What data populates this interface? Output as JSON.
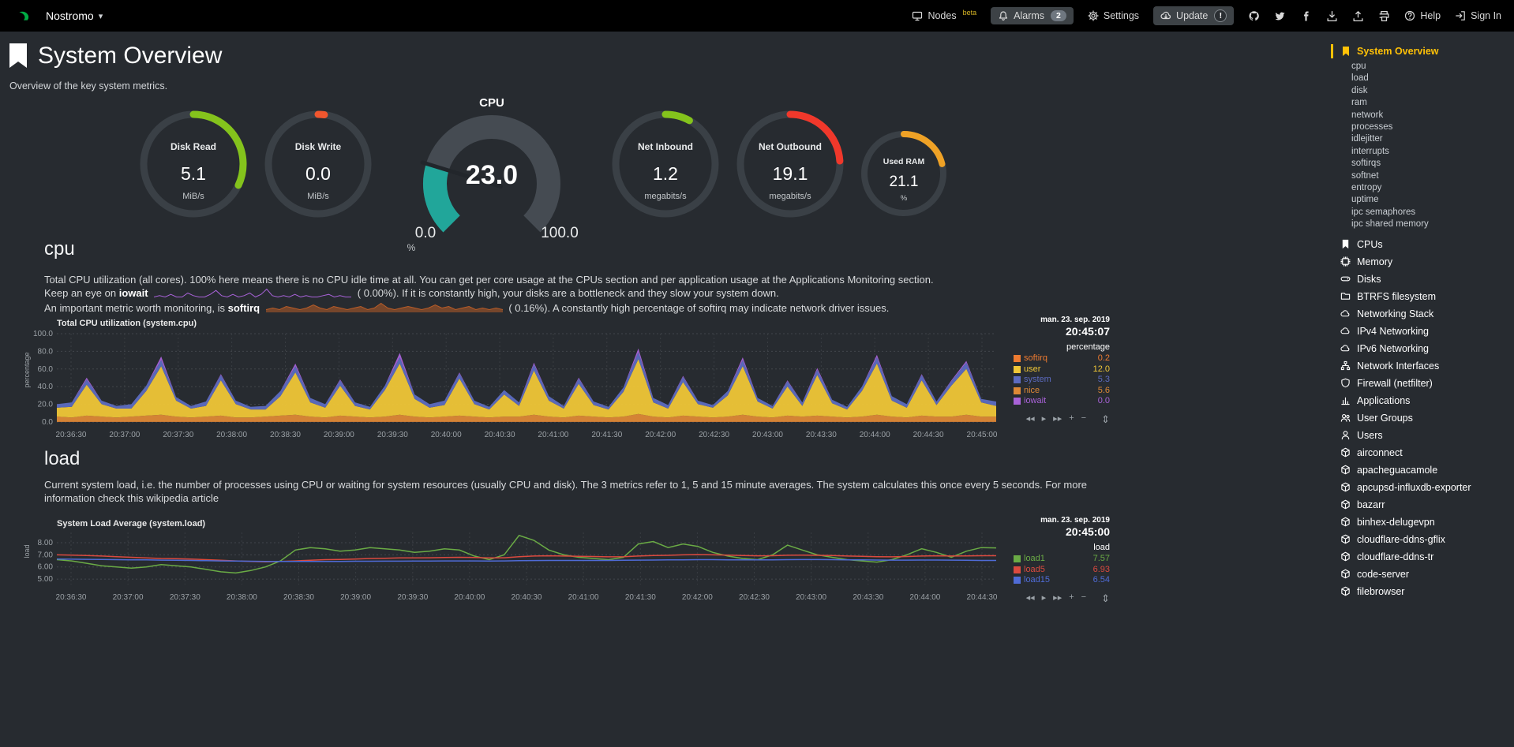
{
  "topbar": {
    "brand": "Nostromo",
    "nodes_label": "Nodes",
    "nodes_badge": "beta",
    "alarms_label": "Alarms",
    "alarms_count": "2",
    "settings_label": "Settings",
    "update_label": "Update",
    "update_badge": "!",
    "help_label": "Help",
    "signin_label": "Sign In"
  },
  "header": {
    "title": "System Overview",
    "subtitle": "Overview of the key system metrics."
  },
  "gauges": [
    {
      "id": "disk-read",
      "type": "pie",
      "label": "Disk Read",
      "value": "5.1",
      "units": "MiB/s",
      "color": "#84C31C",
      "fraction": 0.32
    },
    {
      "id": "disk-write",
      "type": "pie",
      "label": "Disk Write",
      "value": "0.0",
      "units": "MiB/s",
      "color": "#F0562E",
      "fraction": 0.02
    },
    {
      "id": "cpu",
      "type": "gauge",
      "label": "CPU",
      "value": "23.0",
      "min": "0.0",
      "max": "100.0",
      "units": "%",
      "color": "#21A69A",
      "fraction": 0.23
    },
    {
      "id": "net-inbound",
      "type": "pie",
      "label": "Net Inbound",
      "value": "1.2",
      "units": "megabits/s",
      "color": "#84C31C",
      "fraction": 0.08
    },
    {
      "id": "net-outbound",
      "type": "pie",
      "label": "Net Outbound",
      "value": "19.1",
      "units": "megabits/s",
      "color": "#F0382B",
      "fraction": 0.24
    },
    {
      "id": "used-ram",
      "type": "pie",
      "label": "Used RAM",
      "value": "21.1",
      "units": "%",
      "color": "#EFA226",
      "fraction": 0.211,
      "small": true
    }
  ],
  "cpu_section": {
    "heading": "cpu",
    "p1": "Total CPU utilization (all cores). 100% here means there is no CPU idle time at all. You can get per core usage at the CPUs section and per application usage at the Applications Monitoring section.",
    "p2_pre": "Keep an eye on ",
    "p2_bold": "iowait",
    "p2_post": "( 0.00%). If it is constantly high, your disks are a bottleneck and they slow your system down.",
    "p3_pre": "An important metric worth monitoring, is ",
    "p3_bold": "softirq",
    "p3_post": "( 0.16%). A constantly high percentage of softirq may indicate network driver issues.",
    "iowait_spark": [
      0,
      1,
      0,
      2,
      0,
      0,
      3,
      1,
      0,
      0,
      2,
      5,
      1,
      0,
      2,
      0,
      1,
      3,
      0,
      2,
      6,
      1,
      0,
      1,
      0,
      2,
      0,
      1,
      0,
      0,
      1,
      2,
      0,
      1,
      0,
      0
    ],
    "softirq_spark": [
      1,
      2,
      1,
      3,
      2,
      1,
      2,
      4,
      2,
      1,
      3,
      2,
      1,
      2,
      3,
      1,
      2,
      5,
      2,
      1,
      2,
      3,
      2,
      1,
      2,
      4,
      2,
      3,
      1,
      2,
      3,
      1,
      2,
      1,
      2,
      1
    ],
    "spark_colors": {
      "iowait": "#A862D8",
      "softirq": "#B85C28"
    }
  },
  "load_section": {
    "heading": "load",
    "p1": "Current system load, i.e. the number of processes using CPU or waiting for system resources (usually CPU and disk). The 3 metrics refer to 1, 5 and 15 minute averages. The system calculates this once every 5 seconds. For more information check this",
    "link_label": "wikipedia article"
  },
  "toolbox": {
    "labels": [
      "◂◂",
      "▸",
      "▸▸",
      "+",
      "−"
    ],
    "names": [
      "pan-backward",
      "play",
      "pan-forward",
      "zoom-in",
      "zoom-out"
    ],
    "resize": "⇕"
  },
  "chart_data": [
    {
      "type": "area",
      "stacked": true,
      "title": "Total CPU utilization (system.cpu)",
      "date": "man. 23. sep. 2019",
      "time": "20:45:07",
      "unit": "percentage",
      "ylabel": "percentage",
      "ylim": [
        0,
        100
      ],
      "yticks": [
        {
          "v": 0,
          "label": "0.0"
        },
        {
          "v": 20,
          "label": "20.0"
        },
        {
          "v": 40,
          "label": "40.0"
        },
        {
          "v": 60,
          "label": "60.0"
        },
        {
          "v": 80,
          "label": "80.0"
        },
        {
          "v": 100,
          "label": "100.0"
        }
      ],
      "xticks": [
        "20:36:30",
        "20:37:00",
        "20:37:30",
        "20:38:00",
        "20:38:30",
        "20:39:00",
        "20:39:30",
        "20:40:00",
        "20:40:30",
        "20:41:00",
        "20:41:30",
        "20:42:00",
        "20:42:30",
        "20:43:00",
        "20:43:30",
        "20:44:00",
        "20:44:30",
        "20:45:00"
      ],
      "stack_order": [
        "softirq",
        "nice",
        "user",
        "system",
        "iowait"
      ],
      "series": [
        {
          "name": "softirq",
          "color": "#ED7B31",
          "value_label": "0.2",
          "values": [
            0.2,
            0.2,
            0.2,
            0.2,
            0.2,
            0.2,
            0.2,
            0.2,
            0.2,
            0.2,
            0.2,
            0.2,
            0.2,
            0.2,
            0.2,
            0.2,
            0.2,
            0.2,
            0.2,
            0.2,
            0.2,
            0.2,
            0.2,
            0.2,
            0.2,
            0.2,
            0.2,
            0.2,
            0.2,
            0.2,
            0.2,
            0.2,
            0.2,
            0.2,
            0.2,
            0.2,
            0.2,
            0.2,
            0.2,
            0.2,
            0.2,
            0.2,
            0.2,
            0.2,
            0.2,
            0.2,
            0.2,
            0.2,
            0.2,
            0.2,
            0.2,
            0.2,
            0.2,
            0.2,
            0.2,
            0.2,
            0.2,
            0.2,
            0.2,
            0.2,
            0.2,
            0.2,
            0.2,
            0.2
          ]
        },
        {
          "name": "user",
          "color": "#EFC637",
          "value_label": "12.0",
          "values": [
            10,
            12,
            35,
            14,
            10,
            9,
            28,
            55,
            18,
            10,
            12,
            40,
            15,
            9,
            8,
            22,
            48,
            16,
            11,
            34,
            12,
            9,
            30,
            58,
            20,
            11,
            13,
            42,
            14,
            9,
            25,
            12,
            50,
            18,
            10,
            36,
            13,
            9,
            28,
            62,
            16,
            10,
            38,
            14,
            11,
            24,
            55,
            17,
            10,
            33,
            12,
            46,
            15,
            9,
            29,
            58,
            18,
            11,
            40,
            13,
            35,
            52,
            16,
            12
          ]
        },
        {
          "name": "system",
          "color": "#5C6BC0",
          "value_label": "5.3",
          "values": [
            4,
            5,
            6,
            4,
            3,
            5,
            6,
            7,
            4,
            3,
            5,
            6,
            4,
            3,
            4,
            6,
            7,
            5,
            4,
            6,
            4,
            3,
            5,
            7,
            5,
            4,
            5,
            6,
            4,
            3,
            5,
            4,
            7,
            5,
            3,
            6,
            4,
            3,
            5,
            8,
            5,
            4,
            6,
            4,
            3,
            5,
            7,
            4,
            3,
            6,
            4,
            6,
            4,
            3,
            5,
            7,
            5,
            4,
            6,
            4,
            5,
            7,
            4,
            5
          ]
        },
        {
          "name": "nice",
          "color": "#DD8836",
          "value_label": "5.6",
          "values": [
            6,
            5,
            7,
            6,
            5,
            6,
            7,
            8,
            6,
            5,
            6,
            7,
            5,
            5,
            6,
            7,
            8,
            6,
            5,
            7,
            6,
            5,
            6,
            8,
            6,
            5,
            6,
            7,
            6,
            5,
            6,
            6,
            8,
            6,
            5,
            7,
            6,
            5,
            6,
            9,
            6,
            5,
            7,
            6,
            5,
            6,
            8,
            6,
            5,
            7,
            6,
            7,
            6,
            5,
            6,
            8,
            6,
            5,
            7,
            6,
            6,
            8,
            6,
            6
          ]
        },
        {
          "name": "iowait",
          "color": "#A862D8",
          "value_label": "0.0",
          "values": [
            0,
            0,
            2,
            0,
            0,
            0,
            0,
            4,
            0,
            0,
            0,
            1,
            0,
            0,
            0,
            0,
            3,
            0,
            0,
            1,
            0,
            0,
            0,
            5,
            0,
            0,
            0,
            1,
            0,
            0,
            0,
            0,
            2,
            0,
            0,
            1,
            0,
            0,
            0,
            4,
            0,
            0,
            1,
            0,
            0,
            0,
            3,
            0,
            0,
            1,
            0,
            2,
            0,
            0,
            0,
            3,
            0,
            0,
            1,
            0,
            1,
            2,
            0,
            0
          ]
        }
      ]
    },
    {
      "type": "line",
      "stacked": false,
      "title": "System Load Average (system.load)",
      "date": "man. 23. sep. 2019",
      "time": "20:45:00",
      "unit": "load",
      "ylabel": "load",
      "ylim": [
        4.55,
        8.85
      ],
      "yticks": [
        {
          "v": 8,
          "label": "8.00"
        },
        {
          "v": 7,
          "label": "7.00"
        },
        {
          "v": 6,
          "label": "6.00"
        },
        {
          "v": 5,
          "label": "5.00"
        }
      ],
      "xticks": [
        "20:36:30",
        "20:37:00",
        "20:37:30",
        "20:38:00",
        "20:38:30",
        "20:39:00",
        "20:39:30",
        "20:40:00",
        "20:40:30",
        "20:41:00",
        "20:41:30",
        "20:42:00",
        "20:42:30",
        "20:43:00",
        "20:43:30",
        "20:44:00",
        "20:44:30"
      ],
      "series": [
        {
          "name": "load1",
          "color": "#6AAB45",
          "value_label": "7.57",
          "values": [
            6.6,
            6.5,
            6.3,
            6.1,
            6.0,
            5.9,
            6.0,
            6.2,
            6.1,
            6.0,
            5.8,
            5.6,
            5.5,
            5.7,
            6.0,
            6.5,
            7.4,
            7.6,
            7.5,
            7.3,
            7.4,
            7.6,
            7.5,
            7.4,
            7.2,
            7.3,
            7.5,
            7.4,
            6.9,
            6.6,
            7.0,
            8.6,
            8.2,
            7.4,
            7.0,
            6.8,
            6.7,
            6.6,
            6.8,
            7.9,
            8.1,
            7.6,
            7.9,
            7.7,
            7.2,
            6.9,
            6.7,
            6.6,
            7.0,
            7.8,
            7.4,
            7.0,
            6.8,
            6.6,
            6.5,
            6.4,
            6.6,
            7.0,
            7.5,
            7.2,
            6.8,
            7.3,
            7.6,
            7.57
          ]
        },
        {
          "name": "load5",
          "color": "#DB4A3F",
          "value_label": "6.93",
          "values": [
            7.0,
            6.98,
            6.95,
            6.9,
            6.85,
            6.8,
            6.75,
            6.7,
            6.68,
            6.65,
            6.6,
            6.55,
            6.5,
            6.45,
            6.42,
            6.45,
            6.5,
            6.55,
            6.6,
            6.62,
            6.65,
            6.7,
            6.72,
            6.75,
            6.75,
            6.76,
            6.78,
            6.8,
            6.78,
            6.75,
            6.76,
            6.85,
            6.9,
            6.92,
            6.9,
            6.88,
            6.86,
            6.84,
            6.85,
            6.9,
            6.95,
            6.96,
            7.0,
            7.02,
            7.0,
            6.98,
            6.95,
            6.92,
            6.93,
            6.97,
            6.98,
            6.96,
            6.94,
            6.9,
            6.88,
            6.85,
            6.84,
            6.86,
            6.9,
            6.92,
            6.9,
            6.91,
            6.93,
            6.93
          ]
        },
        {
          "name": "load15",
          "color": "#4F6BD6",
          "value_label": "6.54",
          "values": [
            6.65,
            6.64,
            6.63,
            6.62,
            6.6,
            6.59,
            6.58,
            6.56,
            6.55,
            6.54,
            6.52,
            6.5,
            6.49,
            6.47,
            6.46,
            6.45,
            6.45,
            6.45,
            6.46,
            6.46,
            6.47,
            6.47,
            6.48,
            6.48,
            6.49,
            6.49,
            6.5,
            6.5,
            6.5,
            6.49,
            6.5,
            6.52,
            6.53,
            6.54,
            6.54,
            6.54,
            6.54,
            6.54,
            6.55,
            6.56,
            6.57,
            6.58,
            6.59,
            6.6,
            6.6,
            6.59,
            6.59,
            6.58,
            6.59,
            6.6,
            6.61,
            6.61,
            6.6,
            6.59,
            6.58,
            6.57,
            6.56,
            6.56,
            6.57,
            6.57,
            6.56,
            6.55,
            6.54,
            6.54
          ]
        }
      ]
    }
  ],
  "sidebar": {
    "active_label": "System Overview",
    "active_icon": "bookmark-icon",
    "subitems": [
      "cpu",
      "load",
      "disk",
      "ram",
      "network",
      "processes",
      "idlejitter",
      "interrupts",
      "softirqs",
      "softnet",
      "entropy",
      "uptime",
      "ipc semaphores",
      "ipc shared memory"
    ],
    "sections": [
      {
        "label": "CPUs",
        "icon": "bookmark-icon"
      },
      {
        "label": "Memory",
        "icon": "memory-icon"
      },
      {
        "label": "Disks",
        "icon": "hdd-icon"
      },
      {
        "label": "BTRFS filesystem",
        "icon": "folder-icon"
      },
      {
        "label": "Networking Stack",
        "icon": "cloud-icon"
      },
      {
        "label": "IPv4 Networking",
        "icon": "cloud-icon"
      },
      {
        "label": "IPv6 Networking",
        "icon": "cloud-icon"
      },
      {
        "label": "Network Interfaces",
        "icon": "network-icon"
      },
      {
        "label": "Firewall (netfilter)",
        "icon": "shield-icon"
      },
      {
        "label": "Applications",
        "icon": "apps-icon"
      },
      {
        "label": "User Groups",
        "icon": "users-icon"
      },
      {
        "label": "Users",
        "icon": "user-icon"
      },
      {
        "label": "airconnect",
        "icon": "cube-icon"
      },
      {
        "label": "apacheguacamole",
        "icon": "cube-icon"
      },
      {
        "label": "apcupsd-influxdb-exporter",
        "icon": "cube-icon"
      },
      {
        "label": "bazarr",
        "icon": "cube-icon"
      },
      {
        "label": "binhex-delugevpn",
        "icon": "cube-icon"
      },
      {
        "label": "cloudflare-ddns-gflix",
        "icon": "cube-icon"
      },
      {
        "label": "cloudflare-ddns-tr",
        "icon": "cube-icon"
      },
      {
        "label": "code-server",
        "icon": "cube-icon"
      },
      {
        "label": "filebrowser",
        "icon": "cube-icon"
      }
    ]
  },
  "colors": {
    "background": "#272b30",
    "topbar": "#000000",
    "accent_yellow": "#ffc107",
    "netdata_green": "#00AB44",
    "gauge_ring": "#3a4046"
  }
}
